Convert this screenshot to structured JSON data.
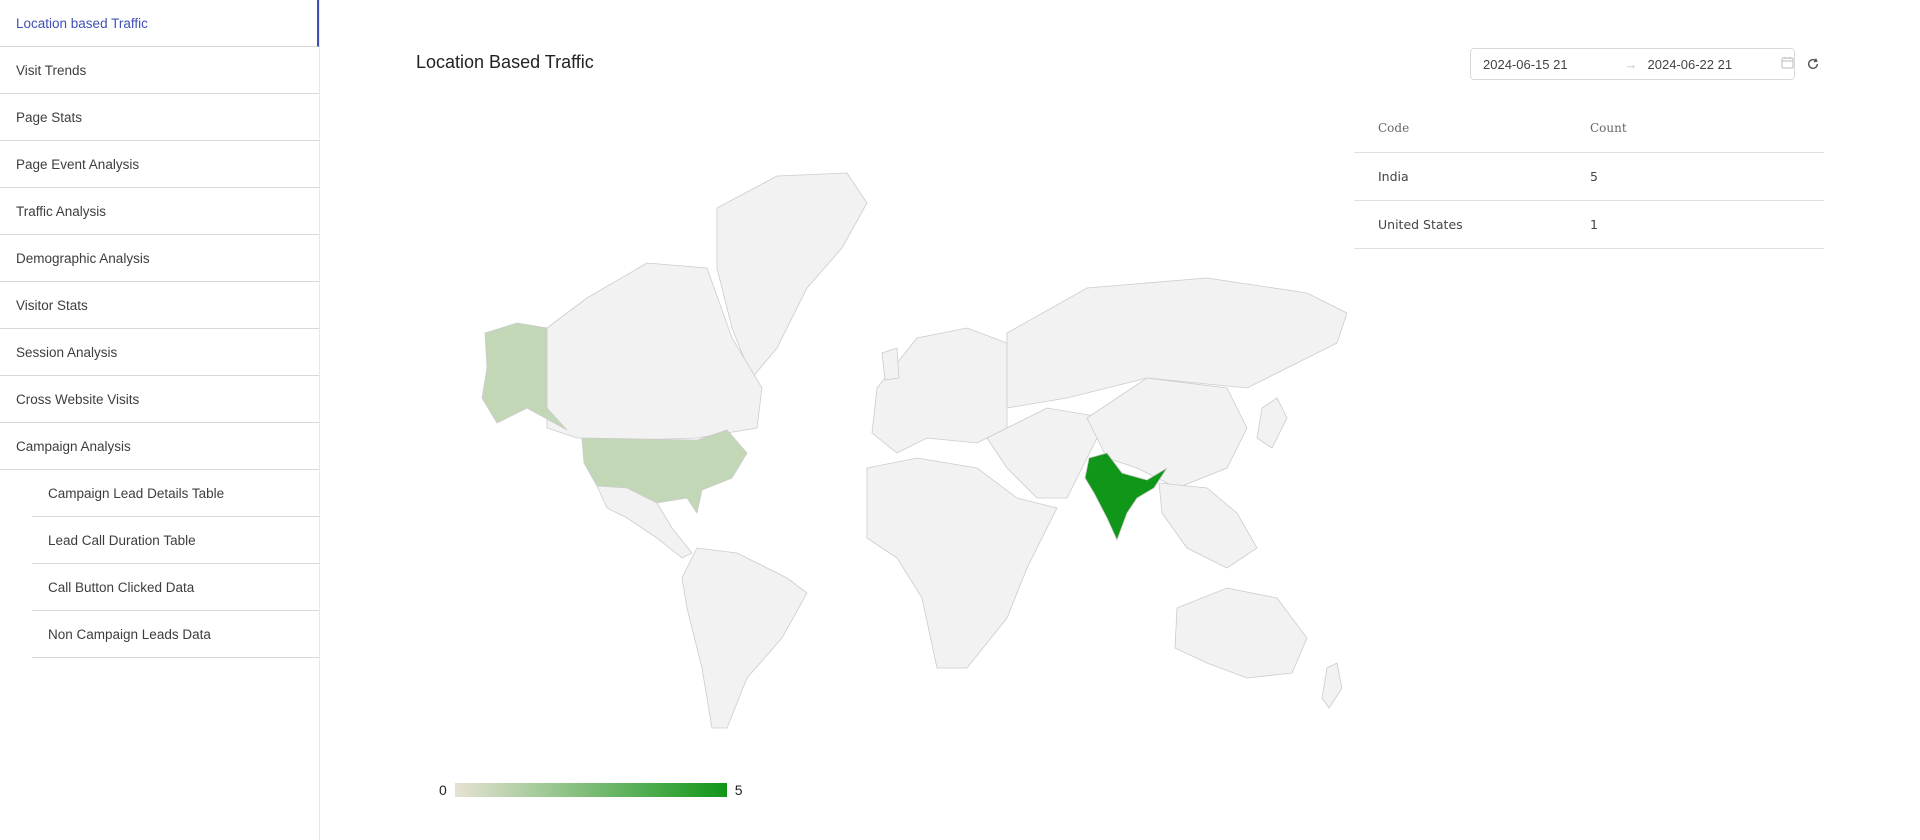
{
  "sidebar": {
    "items": [
      {
        "label": "Location based Traffic",
        "active": true
      },
      {
        "label": "Visit Trends"
      },
      {
        "label": "Page Stats"
      },
      {
        "label": "Page Event Analysis"
      },
      {
        "label": "Traffic Analysis"
      },
      {
        "label": "Demographic Analysis"
      },
      {
        "label": "Visitor Stats"
      },
      {
        "label": "Session Analysis"
      },
      {
        "label": "Cross Website Visits"
      },
      {
        "label": "Campaign Analysis"
      }
    ],
    "subitems": [
      {
        "label": "Campaign Lead Details Table"
      },
      {
        "label": "Lead Call Duration Table"
      },
      {
        "label": "Call Button Clicked Data"
      },
      {
        "label": "Non Campaign Leads Data"
      }
    ]
  },
  "header": {
    "title": "Location Based Traffic"
  },
  "date_range": {
    "start": "2024-06-15 21",
    "end": "2024-06-22 21",
    "separator": "→"
  },
  "table": {
    "headers": {
      "code": "Code",
      "count": "Count"
    },
    "rows": [
      {
        "code": "India",
        "count": "5"
      },
      {
        "code": "United States",
        "count": "1"
      }
    ]
  },
  "legend": {
    "min": "0",
    "max": "5"
  },
  "colors": {
    "accent": "#3f51b5",
    "map_land": "#f2f2f2",
    "map_border": "#cccccc",
    "scale_low": "#e6e2d3",
    "scale_high": "#109618",
    "us_fill": "#c2d7b5",
    "india_fill": "#109618"
  },
  "chart_data": {
    "type": "geochart",
    "regions": [
      {
        "name": "India",
        "value": 5
      },
      {
        "name": "United States",
        "value": 1
      }
    ],
    "color_range": [
      0,
      5
    ]
  }
}
